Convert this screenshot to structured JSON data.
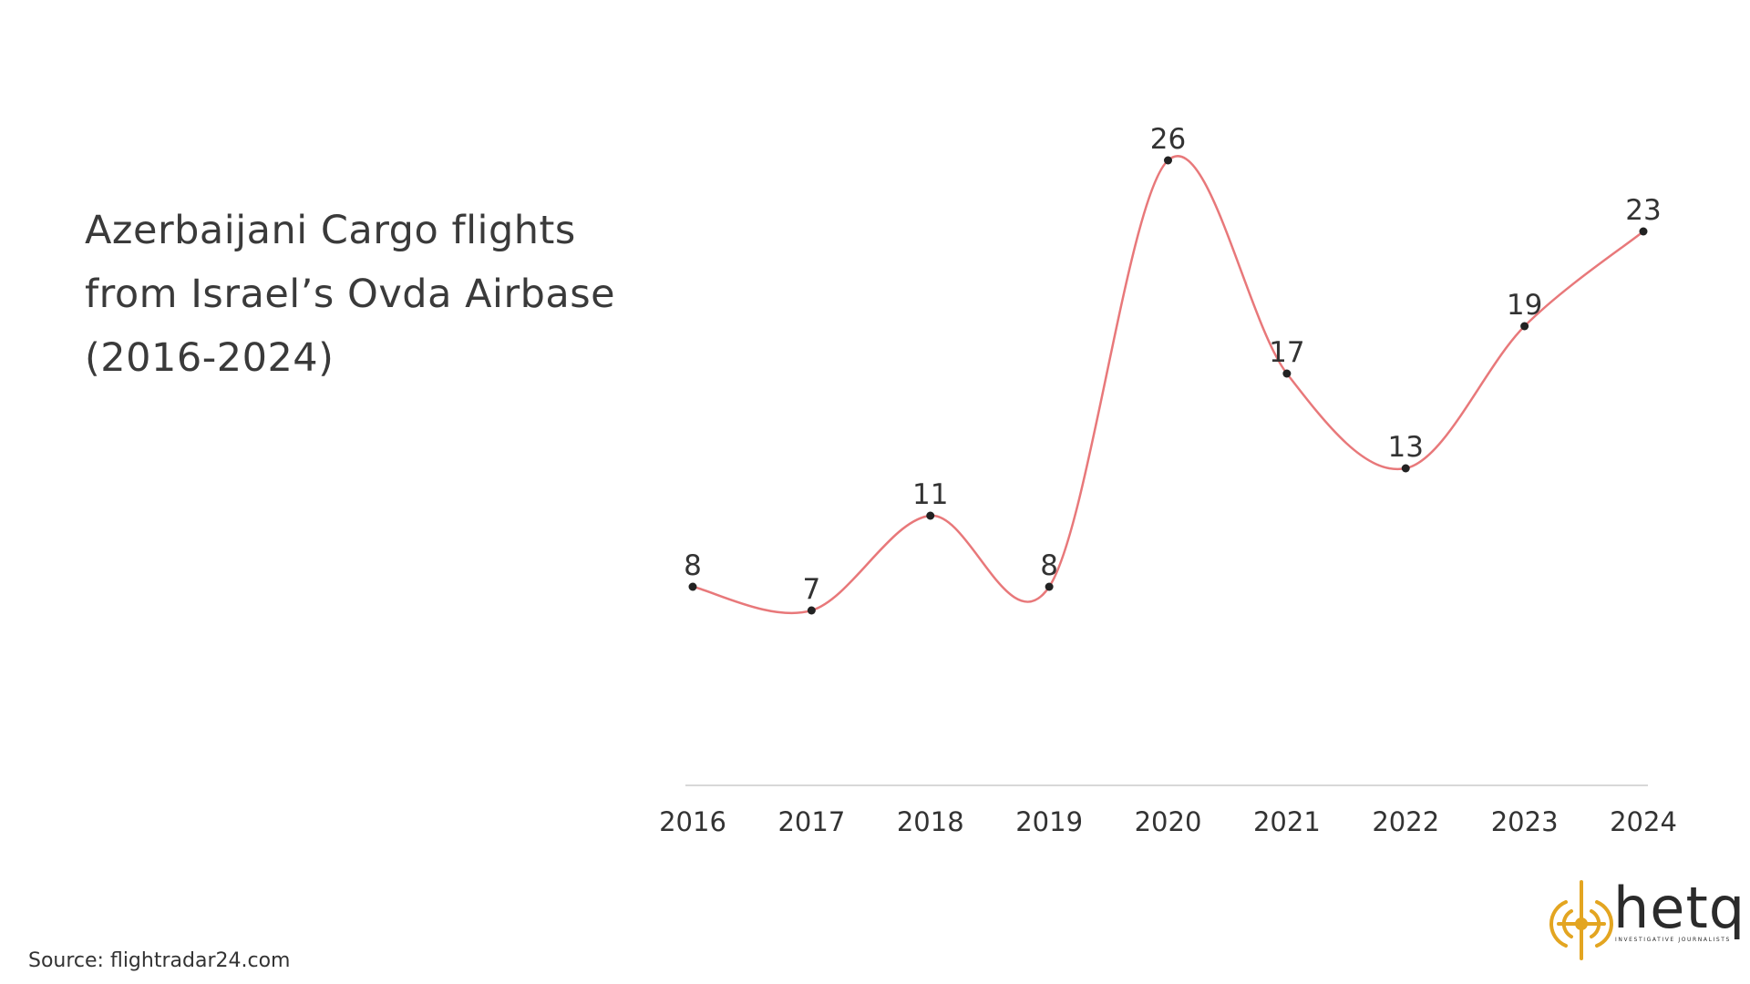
{
  "title": "Azerbaijani Cargo flights\nfrom Israel’s Ovda Airbase\n(2016-2024)",
  "source": "Source: flightradar24.com",
  "logo": {
    "word": "hetq",
    "tagline": "INVESTIGATIVE JOURNALISTS",
    "color": "#E3A521"
  },
  "colors": {
    "line": "#E8787A",
    "point": "#222222",
    "axis": "#cccccc",
    "text": "#333333"
  },
  "chart_data": {
    "type": "line",
    "title": "Azerbaijani Cargo flights from Israel’s Ovda Airbase (2016-2024)",
    "x": [
      "2016",
      "2017",
      "2018",
      "2019",
      "2020",
      "2021",
      "2022",
      "2023",
      "2024"
    ],
    "series": [
      {
        "values": [
          8,
          7,
          11,
          8,
          26,
          17,
          13,
          19,
          23
        ]
      }
    ],
    "ylim": [
      0,
      26
    ],
    "grid": false,
    "legend": "none",
    "data_labels": true,
    "smooth": true
  }
}
